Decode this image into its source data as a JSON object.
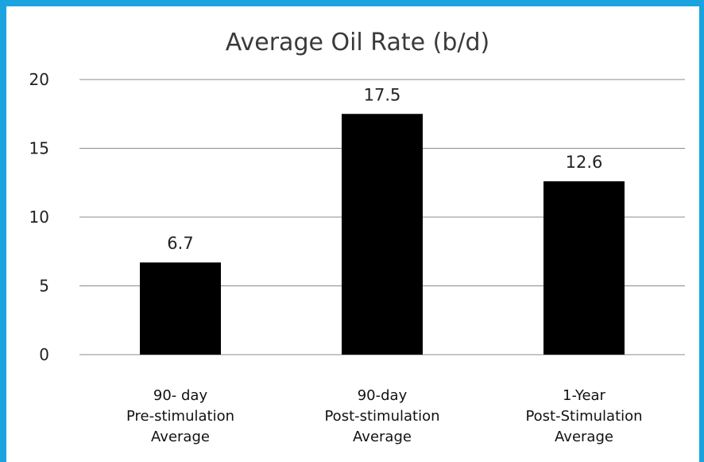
{
  "chart_data": {
    "type": "bar",
    "title": "Average Oil Rate (b/d)",
    "xlabel": "",
    "ylabel": "",
    "categories": [
      [
        "90- day",
        "Pre-stimulation",
        "Average"
      ],
      [
        "90-day",
        "Post-stimulation",
        "Average"
      ],
      [
        "1-Year",
        "Post-Stimulation",
        "Average"
      ]
    ],
    "values": [
      6.7,
      17.5,
      12.6
    ],
    "data_labels": [
      "6.7",
      "17.5",
      "12.6"
    ],
    "ylim": [
      0,
      20
    ],
    "yticks": [
      0,
      5,
      10,
      15,
      20
    ],
    "ytick_labels": [
      "0",
      "5",
      "10",
      "15",
      "20"
    ],
    "grid": true,
    "legend": "none",
    "colors": {
      "bar": "#000000",
      "grid": "#8c8c8c",
      "frame": "#1aa3df"
    }
  }
}
